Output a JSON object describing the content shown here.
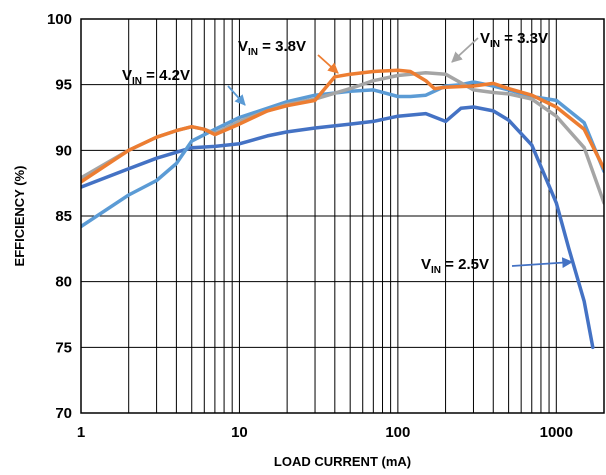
{
  "chart_data": {
    "type": "line",
    "xlabel": "LOAD CURRENT (mA)",
    "ylabel": "EFFICIENCY (%)",
    "xscale": "log",
    "xlim": [
      1,
      2000
    ],
    "ylim": [
      70,
      100
    ],
    "x_ticks": [
      1,
      10,
      100,
      1000
    ],
    "x_tick_labels": [
      "1",
      "10",
      "100",
      "1000"
    ],
    "y_ticks": [
      70,
      75,
      80,
      85,
      90,
      95,
      100
    ],
    "y_tick_labels": [
      "70",
      "75",
      "80",
      "85",
      "90",
      "95",
      "100"
    ],
    "grid": true,
    "series": [
      {
        "name": "VIN = 2.5V",
        "color": "#4472c4",
        "x": [
          1,
          2,
          3,
          5,
          7,
          10,
          15,
          20,
          30,
          50,
          70,
          100,
          150,
          200,
          250,
          300,
          400,
          500,
          700,
          1000,
          1200,
          1500,
          1700
        ],
        "y": [
          87.2,
          88.6,
          89.4,
          90.2,
          90.3,
          90.5,
          91.1,
          91.4,
          91.7,
          92.0,
          92.2,
          92.6,
          92.8,
          92.2,
          93.2,
          93.3,
          93.0,
          92.3,
          90.4,
          86.0,
          82.5,
          78.5,
          75.0
        ]
      },
      {
        "name": "VIN = 3.3V",
        "color": "#a5a5a5",
        "x": [
          1,
          2,
          3,
          4,
          5,
          6,
          7,
          10,
          15,
          20,
          30,
          50,
          70,
          100,
          150,
          200,
          300,
          400,
          500,
          700,
          1000,
          1500,
          2000
        ],
        "y": [
          87.9,
          90.0,
          91.0,
          91.5,
          91.8,
          91.6,
          91.3,
          92.2,
          93.0,
          93.5,
          93.9,
          94.7,
          95.3,
          95.7,
          95.9,
          95.8,
          94.6,
          94.4,
          94.3,
          93.9,
          92.6,
          90.2,
          86.0
        ]
      },
      {
        "name": "VIN = 3.8V",
        "color": "#ed7d31",
        "x": [
          1,
          2,
          3,
          4,
          5,
          6,
          7,
          10,
          15,
          20,
          30,
          40,
          50,
          70,
          100,
          120,
          150,
          170,
          200,
          300,
          400,
          500,
          700,
          1000,
          1500,
          2000
        ],
        "y": [
          87.6,
          90.0,
          91.0,
          91.5,
          91.8,
          91.6,
          91.2,
          92.0,
          93.0,
          93.4,
          93.8,
          95.6,
          95.8,
          96.0,
          96.1,
          96.0,
          95.3,
          94.7,
          94.8,
          94.9,
          95.1,
          94.7,
          94.2,
          93.3,
          91.6,
          88.6
        ]
      },
      {
        "name": "VIN = 4.2V",
        "color": "#5b9bd5",
        "x": [
          1,
          2,
          3,
          4,
          5,
          7,
          10,
          15,
          20,
          30,
          50,
          70,
          100,
          120,
          150,
          200,
          250,
          300,
          400,
          500,
          700,
          1000,
          1500,
          2000
        ],
        "y": [
          84.2,
          86.6,
          87.7,
          89.0,
          90.7,
          91.6,
          92.5,
          93.2,
          93.7,
          94.2,
          94.5,
          94.6,
          94.1,
          94.1,
          94.2,
          94.9,
          95.0,
          95.2,
          94.9,
          94.6,
          94.1,
          93.8,
          92.1,
          88.4
        ]
      }
    ],
    "annotations": [
      {
        "main": "V",
        "sub": "IN",
        "rest": " = 3.8V"
      },
      {
        "main": "V",
        "sub": "IN",
        "rest": " = 3.3V"
      },
      {
        "main": "V",
        "sub": "IN",
        "rest": " = 4.2V"
      },
      {
        "main": "V",
        "sub": "IN",
        "rest": " = 2.5V"
      }
    ]
  }
}
